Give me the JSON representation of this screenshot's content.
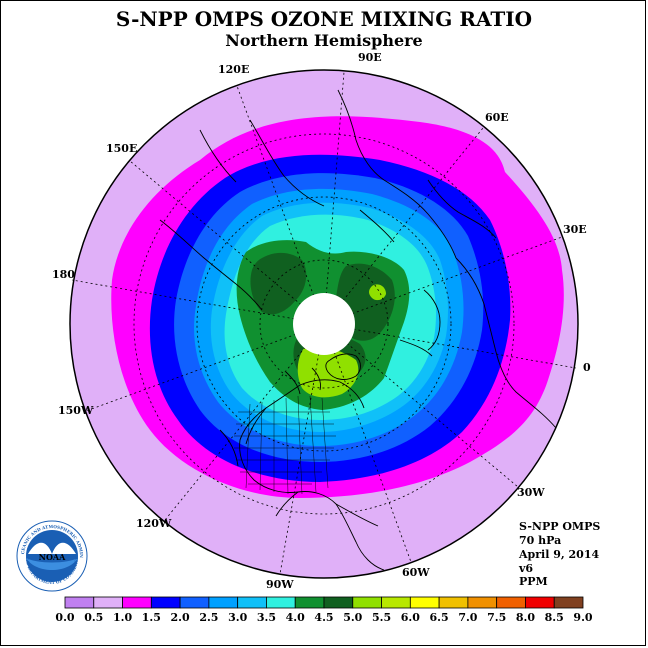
{
  "title": "S-NPP OMPS OZONE MIXING RATIO",
  "subtitle": "Northern Hemisphere",
  "longitude_labels": [
    "90E",
    "60E",
    "30E",
    "0",
    "30W",
    "60W",
    "90W",
    "120W",
    "150W",
    "180",
    "150E",
    "120E"
  ],
  "info_block": {
    "instrument": "S-NPP OMPS",
    "pressure": "70 hPa",
    "date": "April 9, 2014",
    "version": "v6",
    "units": "PPM"
  },
  "colorbar": {
    "ticks": [
      "0.0",
      "0.5",
      "1.0",
      "1.5",
      "2.0",
      "2.5",
      "3.0",
      "3.5",
      "4.0",
      "4.5",
      "5.0",
      "5.5",
      "6.0",
      "6.5",
      "7.0",
      "7.5",
      "8.0",
      "8.5",
      "9.0"
    ],
    "colors": [
      "#c080f0",
      "#e0b0f8",
      "#ff00ff",
      "#0000ff",
      "#1060ff",
      "#00a0ff",
      "#10c0f8",
      "#30f0e0",
      "#109030",
      "#106020",
      "#90e000",
      "#b8e800",
      "#ffff00",
      "#f0c000",
      "#f09000",
      "#f06000",
      "#f00000",
      "#804020"
    ]
  },
  "logo_text": "NOAA",
  "logo_ring_text": "NATIONAL OCEANIC AND ATMOSPHERIC ADMINISTRATION",
  "logo_ring_text_bottom": "U.S. DEPARTMENT OF COMMERCE"
}
